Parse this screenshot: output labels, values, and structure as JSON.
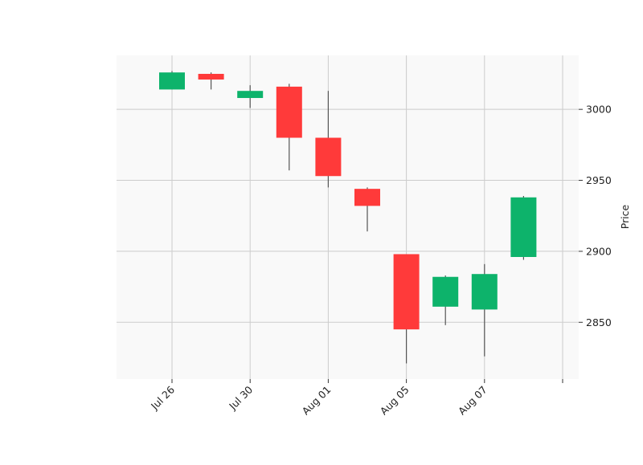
{
  "chart_data": {
    "type": "candlestick",
    "ylabel": "Price",
    "x_tick_labels": [
      "Jul 26",
      "Jul 30",
      "Aug 01",
      "Aug 05",
      "Aug 07",
      ""
    ],
    "y_ticks": [
      2850,
      2900,
      2950,
      3000
    ],
    "ylim": [
      2810,
      3038
    ],
    "grid": true,
    "y_axis_side": "right",
    "colors": {
      "up": "#0db36b",
      "down": "#ff3a3a",
      "wick": "#555555",
      "grid": "#cccccc",
      "plot_background": "#f9f9f9"
    },
    "candles": [
      {
        "open": 3014,
        "high": 3027,
        "low": 3014,
        "close": 3026
      },
      {
        "open": 3025,
        "high": 3026,
        "low": 3014,
        "close": 3021
      },
      {
        "open": 3008,
        "high": 3017,
        "low": 3001,
        "close": 3013
      },
      {
        "open": 3016,
        "high": 3018,
        "low": 2957,
        "close": 2980
      },
      {
        "open": 2980,
        "high": 3013,
        "low": 2945,
        "close": 2953
      },
      {
        "open": 2944,
        "high": 2945,
        "low": 2914,
        "close": 2932
      },
      {
        "open": 2898,
        "high": 2898,
        "low": 2821,
        "close": 2845
      },
      {
        "open": 2861,
        "high": 2883,
        "low": 2848,
        "close": 2882
      },
      {
        "open": 2859,
        "high": 2891,
        "low": 2826,
        "close": 2884
      },
      {
        "open": 2896,
        "high": 2939,
        "low": 2894,
        "close": 2938
      }
    ]
  }
}
